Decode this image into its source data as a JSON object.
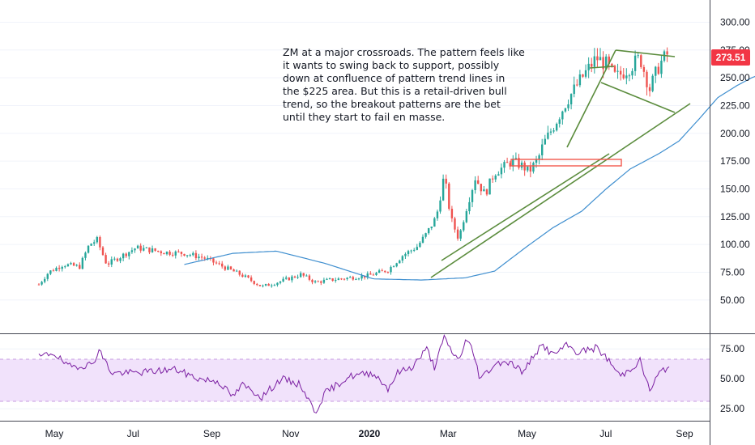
{
  "chart_data": {
    "type": "candlestick",
    "symbol": "ZM",
    "annotation_lines": [
      "ZM at a major crossroads. The pattern feels like",
      "it wants to swing back to support, possibly",
      "down at confluence of pattern trend lines in",
      "the $225 area. But this is a retail-driven bull",
      "trend, so the breakout patterns are the bet",
      "until they start to fail en masse."
    ],
    "last_price": "273.51",
    "price_axis": {
      "range": [
        20,
        320
      ],
      "ticks": [
        "300.00",
        "275.00",
        "250.00",
        "225.00",
        "200.00",
        "175.00",
        "150.00",
        "125.00",
        "100.00",
        "75.00",
        "50.00"
      ]
    },
    "rsi_axis": {
      "range": [
        15,
        88
      ],
      "ticks": [
        "75.00",
        "50.00",
        "25.00"
      ],
      "band": [
        30,
        70
      ]
    },
    "x_axis": {
      "labels": [
        "May",
        "Jul",
        "Sep",
        "Nov",
        "2020",
        "Mar",
        "May",
        "Jul",
        "Sep"
      ],
      "bold_labels": [
        "2020"
      ]
    },
    "price_anchors": [
      [
        0,
        64
      ],
      [
        10,
        75
      ],
      [
        25,
        82
      ],
      [
        42,
        80
      ],
      [
        52,
        100
      ],
      [
        60,
        104
      ],
      [
        70,
        82
      ],
      [
        80,
        87
      ],
      [
        100,
        97
      ],
      [
        130,
        93
      ],
      [
        150,
        92
      ],
      [
        170,
        88
      ],
      [
        190,
        80
      ],
      [
        210,
        72
      ],
      [
        230,
        62
      ],
      [
        250,
        67
      ],
      [
        270,
        73
      ],
      [
        285,
        66
      ],
      [
        300,
        68
      ],
      [
        320,
        70
      ],
      [
        340,
        72
      ],
      [
        360,
        77
      ],
      [
        375,
        90
      ],
      [
        390,
        98
      ],
      [
        400,
        110
      ],
      [
        410,
        125
      ],
      [
        418,
        162
      ],
      [
        425,
        123
      ],
      [
        433,
        105
      ],
      [
        440,
        130
      ],
      [
        450,
        160
      ],
      [
        460,
        145
      ],
      [
        470,
        165
      ],
      [
        480,
        170
      ],
      [
        488,
        175
      ],
      [
        500,
        170
      ],
      [
        505,
        165
      ],
      [
        515,
        177
      ],
      [
        520,
        190
      ],
      [
        530,
        205
      ],
      [
        545,
        230
      ],
      [
        560,
        250
      ],
      [
        575,
        268
      ],
      [
        585,
        262
      ],
      [
        595,
        250
      ],
      [
        610,
        260
      ],
      [
        620,
        268
      ],
      [
        630,
        240
      ],
      [
        640,
        262
      ],
      [
        650,
        273
      ]
    ],
    "ma_anchors": [
      [
        150,
        82
      ],
      [
        200,
        92
      ],
      [
        245,
        94
      ],
      [
        295,
        83
      ],
      [
        345,
        69
      ],
      [
        395,
        68
      ],
      [
        440,
        70
      ],
      [
        470,
        76
      ],
      [
        500,
        96
      ],
      [
        530,
        115
      ],
      [
        560,
        130
      ],
      [
        585,
        150
      ],
      [
        610,
        168
      ],
      [
        640,
        182
      ],
      [
        660,
        193
      ],
      [
        680,
        212
      ],
      [
        700,
        232
      ],
      [
        720,
        243
      ],
      [
        735,
        250
      ],
      [
        750,
        255
      ]
    ],
    "rsi_anchors": [
      [
        0,
        68
      ],
      [
        15,
        72
      ],
      [
        30,
        60
      ],
      [
        55,
        62
      ],
      [
        62,
        74
      ],
      [
        75,
        55
      ],
      [
        100,
        55
      ],
      [
        140,
        58
      ],
      [
        165,
        50
      ],
      [
        185,
        48
      ],
      [
        200,
        35
      ],
      [
        210,
        45
      ],
      [
        230,
        35
      ],
      [
        250,
        50
      ],
      [
        270,
        45
      ],
      [
        285,
        22
      ],
      [
        295,
        38
      ],
      [
        320,
        52
      ],
      [
        345,
        55
      ],
      [
        360,
        42
      ],
      [
        370,
        55
      ],
      [
        385,
        60
      ],
      [
        400,
        75
      ],
      [
        408,
        60
      ],
      [
        418,
        84
      ],
      [
        425,
        74
      ],
      [
        433,
        65
      ],
      [
        440,
        82
      ],
      [
        445,
        78
      ],
      [
        450,
        66
      ],
      [
        455,
        50
      ],
      [
        470,
        62
      ],
      [
        480,
        65
      ],
      [
        490,
        62
      ],
      [
        500,
        55
      ],
      [
        510,
        70
      ],
      [
        520,
        78
      ],
      [
        530,
        70
      ],
      [
        545,
        78
      ],
      [
        555,
        72
      ],
      [
        575,
        76
      ],
      [
        585,
        68
      ],
      [
        600,
        52
      ],
      [
        620,
        65
      ],
      [
        630,
        40
      ],
      [
        640,
        55
      ],
      [
        650,
        60
      ]
    ]
  }
}
